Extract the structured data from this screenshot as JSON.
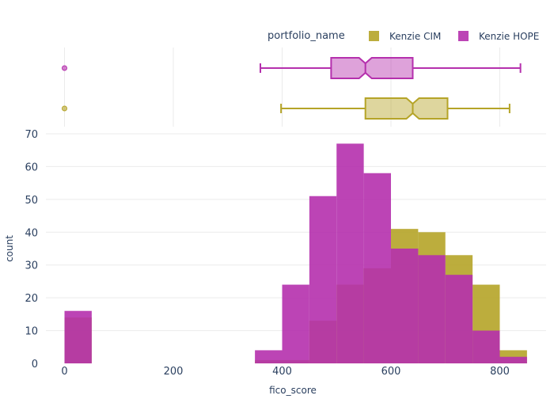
{
  "chart_data": {
    "type": "histogram",
    "barmode": "overlay",
    "xlabel": "fico_score",
    "ylabel": "count",
    "xlim": [
      -20,
      850
    ],
    "ylim": [
      0,
      70
    ],
    "x_ticks": [
      "0",
      "200",
      "400",
      "600",
      "800"
    ],
    "y_ticks": [
      "0",
      "10",
      "20",
      "30",
      "40",
      "50",
      "60",
      "70"
    ],
    "bin_width": 50,
    "legend": {
      "title": "portfolio_name",
      "placement": "top-right",
      "entries": [
        "Kenzie CIM",
        "Kenzie HOPE"
      ]
    },
    "series": [
      {
        "name": "Kenzie CIM",
        "color": "#b5a428",
        "bins": [
          {
            "x0": 0,
            "count": 14
          },
          {
            "x0": 350,
            "count": 1
          },
          {
            "x0": 400,
            "count": 1
          },
          {
            "x0": 450,
            "count": 13
          },
          {
            "x0": 500,
            "count": 24
          },
          {
            "x0": 550,
            "count": 29
          },
          {
            "x0": 600,
            "count": 41
          },
          {
            "x0": 650,
            "count": 40
          },
          {
            "x0": 700,
            "count": 33
          },
          {
            "x0": 750,
            "count": 24
          },
          {
            "x0": 800,
            "count": 4
          }
        ]
      },
      {
        "name": "Kenzie HOPE",
        "color": "#b530ad",
        "bins": [
          {
            "x0": 0,
            "count": 16
          },
          {
            "x0": 350,
            "count": 4
          },
          {
            "x0": 400,
            "count": 24
          },
          {
            "x0": 450,
            "count": 51
          },
          {
            "x0": 500,
            "count": 67
          },
          {
            "x0": 550,
            "count": 58
          },
          {
            "x0": 600,
            "count": 35
          },
          {
            "x0": 650,
            "count": 33
          },
          {
            "x0": 700,
            "count": 27
          },
          {
            "x0": 750,
            "count": 10
          },
          {
            "x0": 800,
            "count": 2
          }
        ]
      }
    ],
    "marginal_boxplots": [
      {
        "name": "Kenzie HOPE",
        "color": "#b530ad",
        "whisker_low": 360,
        "q1": 490,
        "median": 553,
        "q3": 640,
        "whisker_high": 838,
        "outliers": [
          0
        ]
      },
      {
        "name": "Kenzie CIM",
        "color": "#b5a428",
        "whisker_low": 398,
        "q1": 553,
        "median": 640,
        "q3": 704,
        "whisker_high": 818,
        "outliers": [
          0
        ]
      }
    ]
  }
}
